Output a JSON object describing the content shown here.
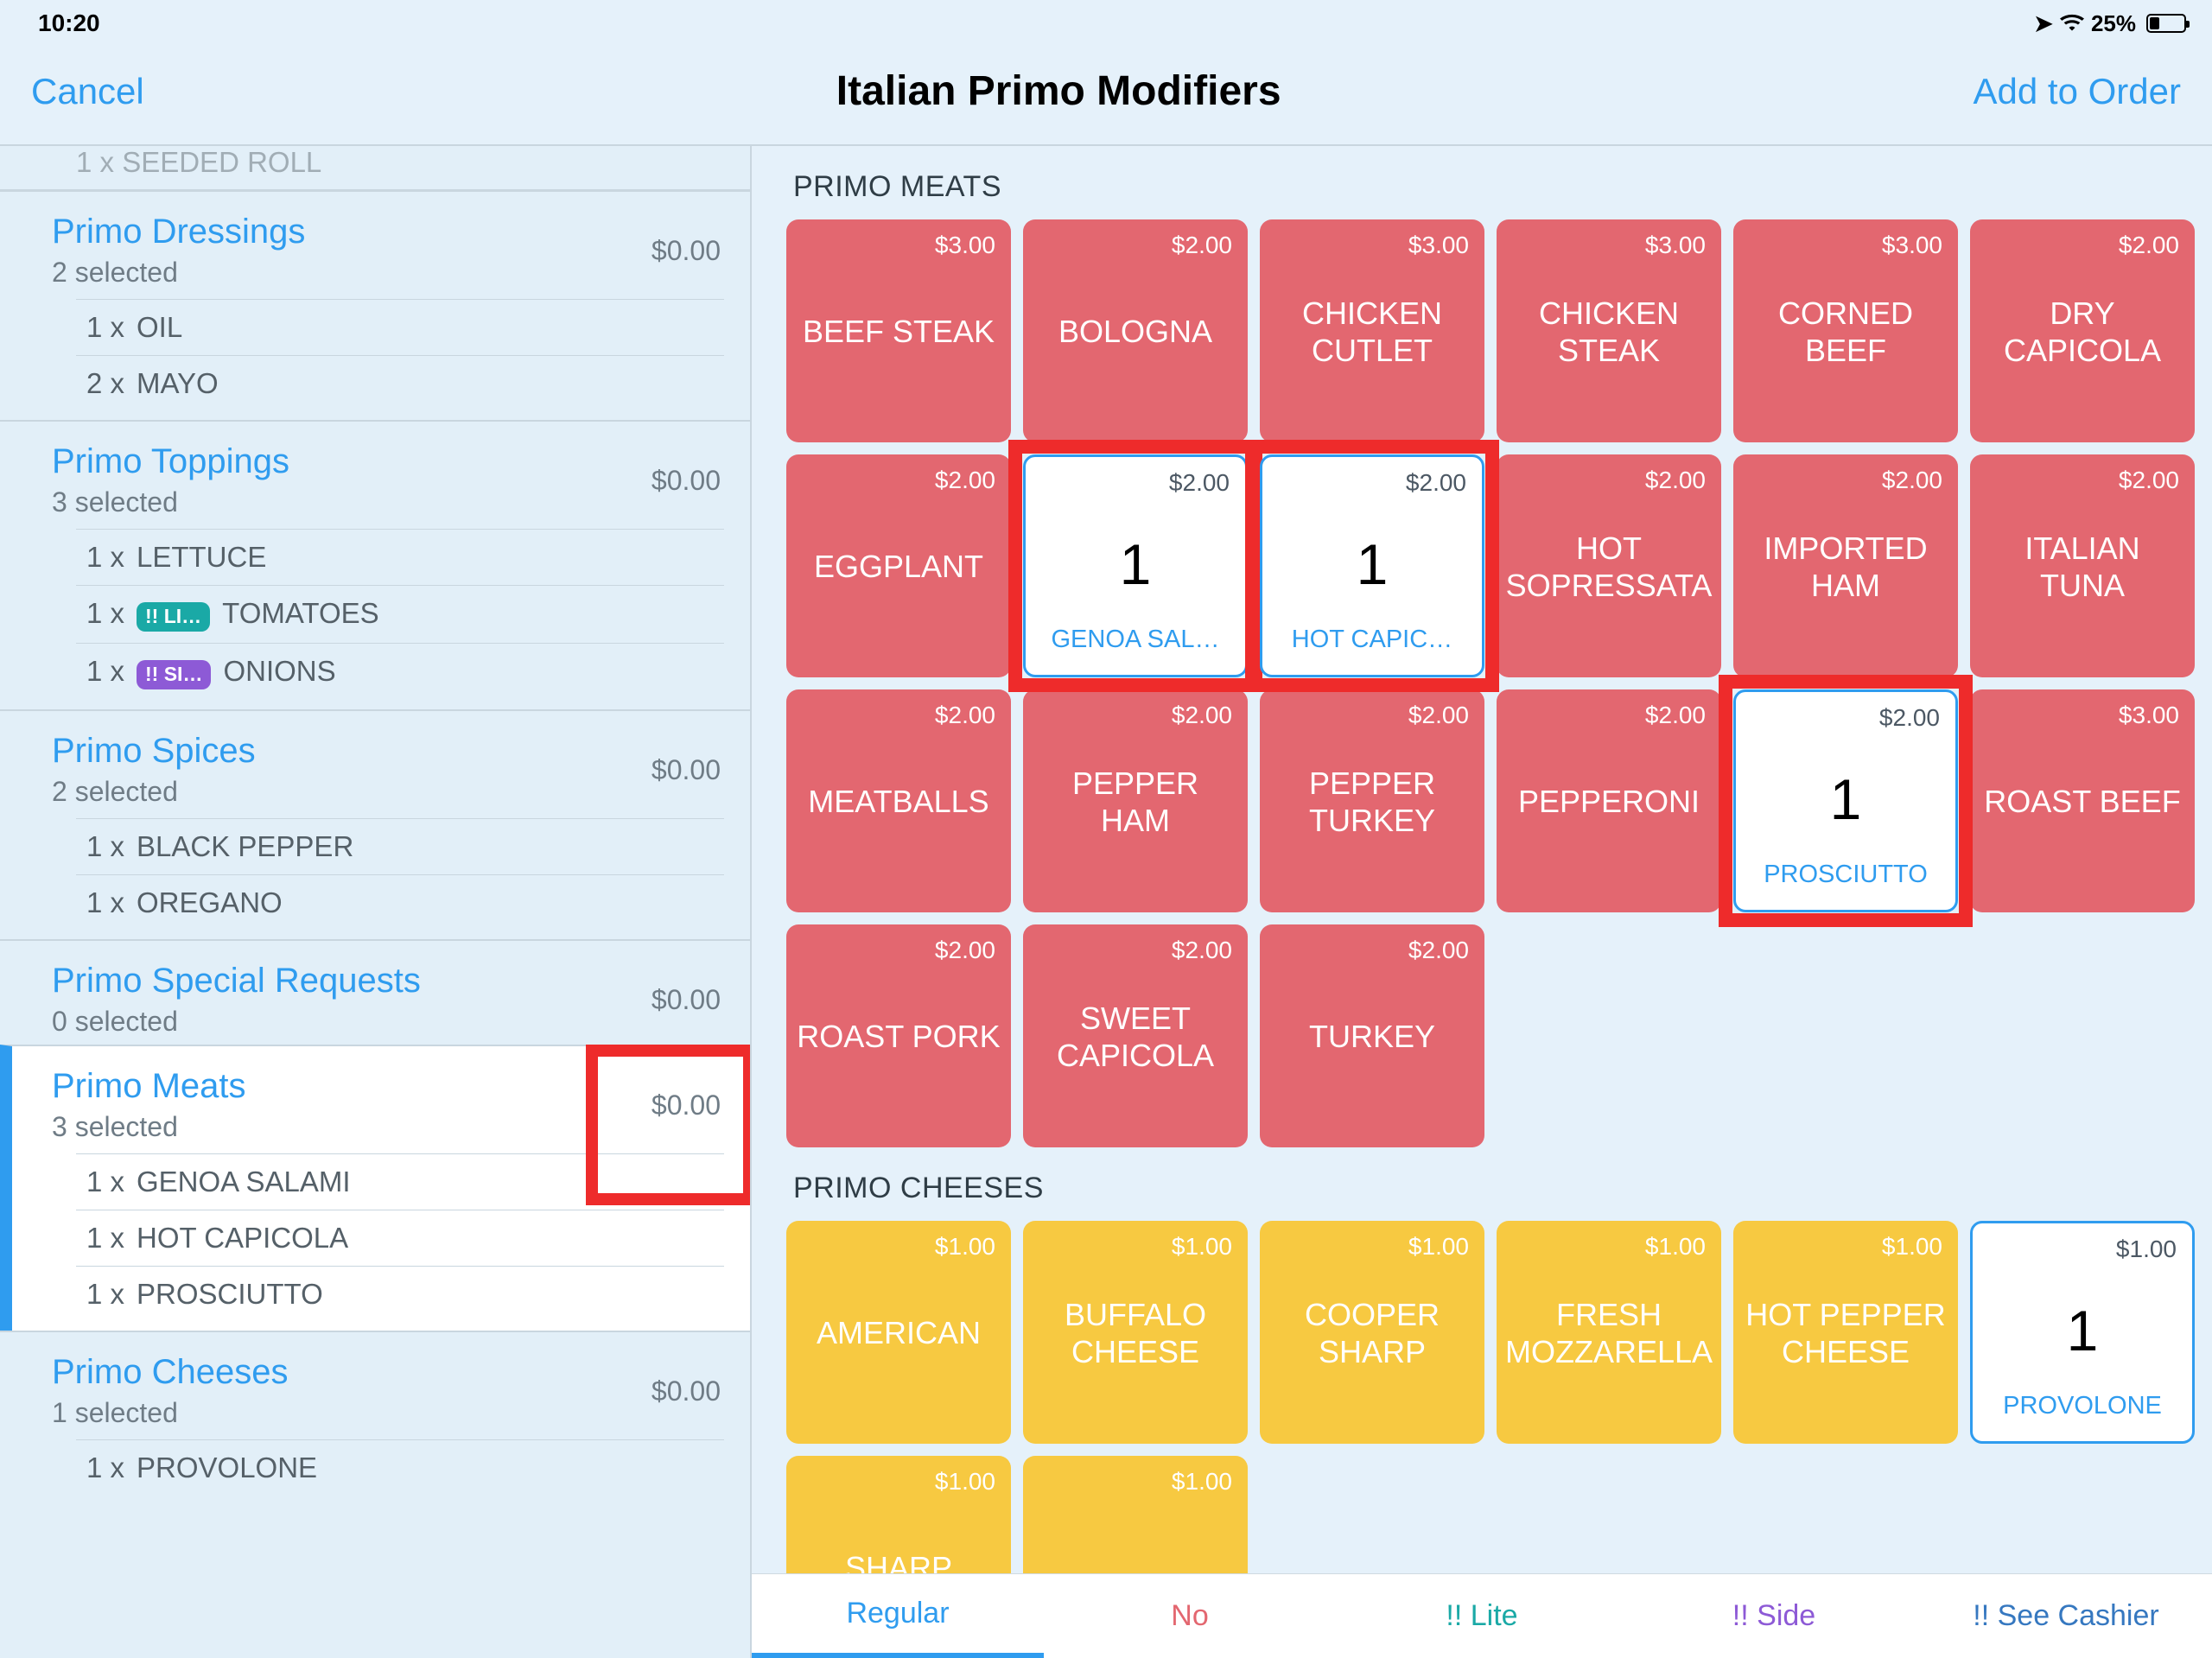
{
  "statusbar": {
    "time": "10:20",
    "battery_text": "25%"
  },
  "nav": {
    "cancel": "Cancel",
    "title": "Italian Primo Modifiers",
    "add": "Add to Order"
  },
  "sidebar": {
    "partial_top": "1 x  SEEDED ROLL",
    "groups": [
      {
        "name": "Primo Dressings",
        "sub": "2 selected",
        "price": "$0.00",
        "items": [
          {
            "qty": "1 x",
            "label": "OIL"
          },
          {
            "qty": "2 x",
            "label": "MAYO"
          }
        ]
      },
      {
        "name": "Primo Toppings",
        "sub": "3 selected",
        "price": "$0.00",
        "items": [
          {
            "qty": "1 x",
            "label": "LETTUCE"
          },
          {
            "qty": "1 x",
            "badge": "!! LI…",
            "badge_cls": "badge-green",
            "label": "TOMATOES"
          },
          {
            "qty": "1 x",
            "badge": "!! SI…",
            "badge_cls": "badge-purple",
            "label": "ONIONS"
          }
        ]
      },
      {
        "name": "Primo Spices",
        "sub": "2 selected",
        "price": "$0.00",
        "items": [
          {
            "qty": "1 x",
            "label": "BLACK PEPPER"
          },
          {
            "qty": "1 x",
            "label": "OREGANO"
          }
        ]
      },
      {
        "name": "Primo Special Requests",
        "sub": "0 selected",
        "price": "$0.00",
        "items": []
      },
      {
        "name": "Primo Meats",
        "sub": "3 selected",
        "price": "$0.00",
        "active": true,
        "hl_price": true,
        "items": [
          {
            "qty": "1 x",
            "label": "GENOA SALAMI"
          },
          {
            "qty": "1 x",
            "label": "HOT CAPICOLA"
          },
          {
            "qty": "1 x",
            "label": "PROSCIUTTO"
          }
        ]
      },
      {
        "name": "Primo Cheeses",
        "sub": "1 selected",
        "price": "$0.00",
        "items": [
          {
            "qty": "1 x",
            "label": "PROVOLONE"
          }
        ]
      }
    ]
  },
  "sections": [
    {
      "title": "PRIMO MEATS",
      "color": "red",
      "tiles": [
        {
          "price": "$3.00",
          "name": "BEEF STEAK"
        },
        {
          "price": "$2.00",
          "name": "BOLOGNA"
        },
        {
          "price": "$3.00",
          "name": "CHICKEN CUTLET"
        },
        {
          "price": "$3.00",
          "name": "CHICKEN STEAK"
        },
        {
          "price": "$3.00",
          "name": "CORNED BEEF"
        },
        {
          "price": "$2.00",
          "name": "DRY CAPICOLA"
        },
        {
          "price": "$2.00",
          "name": "EGGPLANT"
        },
        {
          "price": "$2.00",
          "name": "GENOA SAL…",
          "selected": true,
          "count": "1",
          "hl": true
        },
        {
          "price": "$2.00",
          "name": "HOT CAPIC…",
          "selected": true,
          "count": "1",
          "hl": true
        },
        {
          "price": "$2.00",
          "name": "HOT SOPRESSATA"
        },
        {
          "price": "$2.00",
          "name": "IMPORTED HAM"
        },
        {
          "price": "$2.00",
          "name": "ITALIAN TUNA"
        },
        {
          "price": "$2.00",
          "name": "MEATBALLS"
        },
        {
          "price": "$2.00",
          "name": "PEPPER HAM"
        },
        {
          "price": "$2.00",
          "name": "PEPPER TURKEY"
        },
        {
          "price": "$2.00",
          "name": "PEPPERONI"
        },
        {
          "price": "$2.00",
          "name": "PROSCIUTTO",
          "selected": true,
          "count": "1",
          "hl": true
        },
        {
          "price": "$3.00",
          "name": "ROAST BEEF"
        },
        {
          "price": "$2.00",
          "name": "ROAST PORK"
        },
        {
          "price": "$2.00",
          "name": "SWEET CAPICOLA"
        },
        {
          "price": "$2.00",
          "name": "TURKEY"
        }
      ]
    },
    {
      "title": "PRIMO CHEESES",
      "color": "yellow",
      "tiles": [
        {
          "price": "$1.00",
          "name": "AMERICAN"
        },
        {
          "price": "$1.00",
          "name": "BUFFALO CHEESE"
        },
        {
          "price": "$1.00",
          "name": "COOPER SHARP"
        },
        {
          "price": "$1.00",
          "name": "FRESH MOZZARELLA"
        },
        {
          "price": "$1.00",
          "name": "HOT PEPPER CHEESE"
        },
        {
          "price": "$1.00",
          "name": "PROVOLONE",
          "selected": true,
          "count": "1"
        },
        {
          "price": "$1.00",
          "name": "SHARP"
        },
        {
          "price": "$1.00",
          "name": ""
        }
      ]
    }
  ],
  "bottom": {
    "regular": "Regular",
    "no": "No",
    "lite": "!! Lite",
    "side": "!! Side",
    "cashier": "!! See Cashier"
  }
}
